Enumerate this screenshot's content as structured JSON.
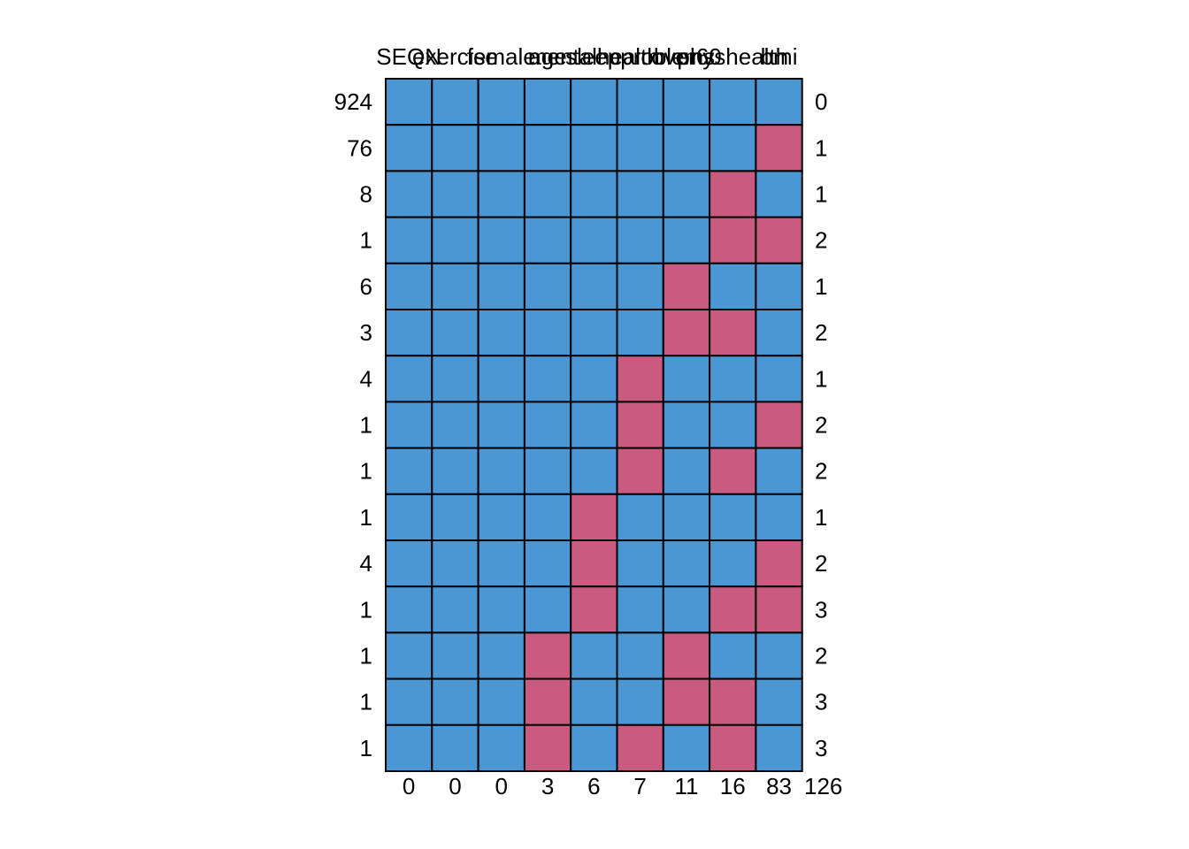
{
  "chart_data": {
    "type": "heatmap",
    "title": "",
    "columns": [
      "SEQN",
      "exercise",
      "female",
      "age",
      "mentalhealth",
      "sleepproblems",
      "over60",
      "physhealth",
      "bmi"
    ],
    "column_missing_totals": [
      "0",
      "0",
      "0",
      "3",
      "6",
      "7",
      "11",
      "16",
      "83"
    ],
    "grand_total_missing": "126",
    "row_counts": [
      "924",
      "76",
      "8",
      "1",
      "6",
      "3",
      "4",
      "1",
      "1",
      "1",
      "4",
      "1",
      "1",
      "1",
      "1"
    ],
    "row_missing_counts": [
      "0",
      "1",
      "1",
      "2",
      "1",
      "2",
      "1",
      "2",
      "2",
      "1",
      "2",
      "3",
      "2",
      "3",
      "3"
    ],
    "patterns": [
      [
        1,
        1,
        1,
        1,
        1,
        1,
        1,
        1,
        1
      ],
      [
        1,
        1,
        1,
        1,
        1,
        1,
        1,
        1,
        0
      ],
      [
        1,
        1,
        1,
        1,
        1,
        1,
        1,
        0,
        1
      ],
      [
        1,
        1,
        1,
        1,
        1,
        1,
        1,
        0,
        0
      ],
      [
        1,
        1,
        1,
        1,
        1,
        1,
        0,
        1,
        1
      ],
      [
        1,
        1,
        1,
        1,
        1,
        1,
        0,
        0,
        1
      ],
      [
        1,
        1,
        1,
        1,
        1,
        0,
        1,
        1,
        1
      ],
      [
        1,
        1,
        1,
        1,
        1,
        0,
        1,
        1,
        0
      ],
      [
        1,
        1,
        1,
        1,
        1,
        0,
        1,
        0,
        1
      ],
      [
        1,
        1,
        1,
        1,
        0,
        1,
        1,
        1,
        1
      ],
      [
        1,
        1,
        1,
        1,
        0,
        1,
        1,
        1,
        0
      ],
      [
        1,
        1,
        1,
        1,
        0,
        1,
        1,
        0,
        0
      ],
      [
        1,
        1,
        1,
        0,
        1,
        1,
        0,
        1,
        1
      ],
      [
        1,
        1,
        1,
        0,
        1,
        1,
        0,
        0,
        1
      ],
      [
        1,
        1,
        1,
        0,
        1,
        0,
        1,
        0,
        1
      ]
    ],
    "legend": {
      "observed": "1",
      "missing": "0"
    },
    "colors": {
      "observed": "#4A97D4",
      "missing": "#C95A80",
      "border": "#000000"
    }
  }
}
